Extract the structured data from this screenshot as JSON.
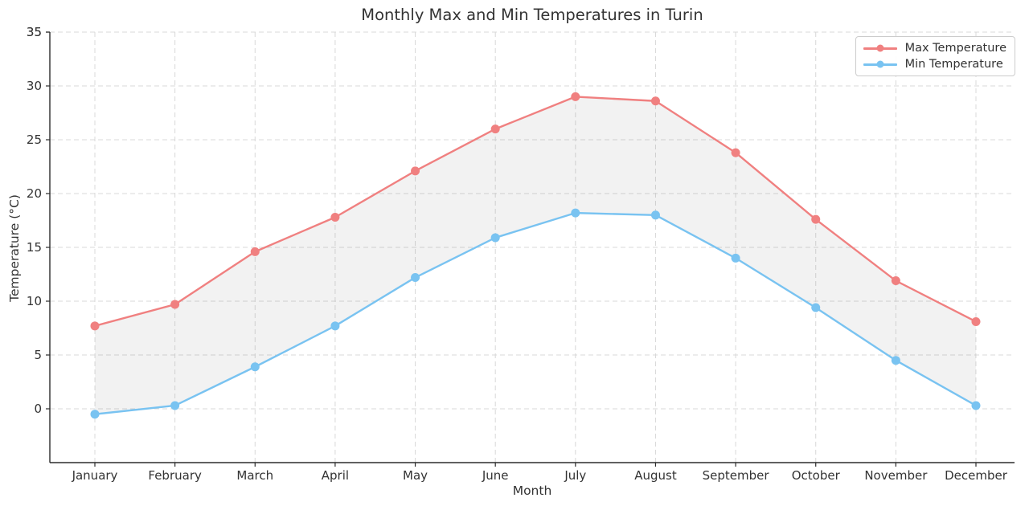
{
  "chart_data": {
    "type": "line",
    "title": "Monthly Max and Min Temperatures in Turin",
    "xlabel": "Month",
    "ylabel": "Temperature (°C)",
    "categories": [
      "January",
      "February",
      "March",
      "April",
      "May",
      "June",
      "July",
      "August",
      "September",
      "October",
      "November",
      "December"
    ],
    "series": [
      {
        "name": "Max Temperature",
        "color": "#F08080",
        "values": [
          7.7,
          9.7,
          14.6,
          17.8,
          22.1,
          26.0,
          29.0,
          28.6,
          23.8,
          17.6,
          11.9,
          8.1
        ]
      },
      {
        "name": "Min Temperature",
        "color": "#79C3F1",
        "values": [
          -0.5,
          0.3,
          3.9,
          7.7,
          12.2,
          15.9,
          18.2,
          18.0,
          14.0,
          9.4,
          4.5,
          0.3
        ]
      }
    ],
    "fill_between": {
      "color": "#808080",
      "opacity": 0.1
    },
    "ylim": [
      -5,
      35
    ],
    "yticks": [
      0,
      5,
      10,
      15,
      20,
      25,
      30,
      35
    ],
    "grid": {
      "on": true,
      "style": "dashed",
      "color": "#d8d8d8"
    },
    "legend": {
      "position": "upper right"
    },
    "marker": "circle",
    "axis_color": "#2b2b2b",
    "text_color": "#333333"
  }
}
